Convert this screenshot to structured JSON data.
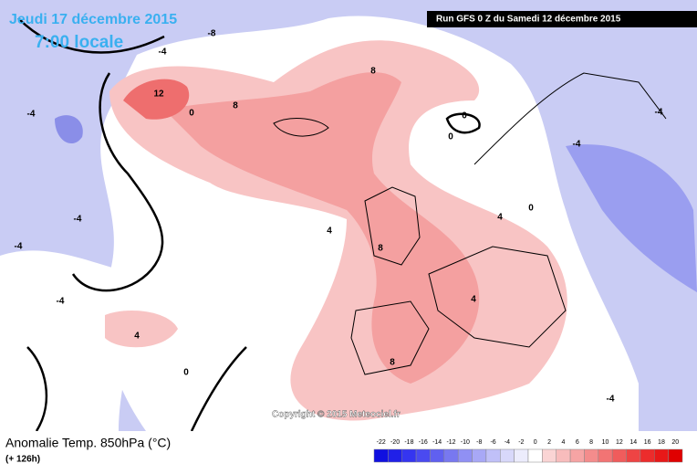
{
  "date": "Jeudi 17 décembre 2015",
  "time": "7:00 locale",
  "run": "Run GFS 0 Z du Samedi 12 décembre 2015",
  "copyright": "Copyright © 2015 Meteociel.fr",
  "title": "Anomalie Temp. 850hPa (°C)",
  "lead": "(+ 126h)",
  "contour_labels": [
    12,
    8,
    8,
    0,
    0,
    0,
    8,
    8,
    4,
    4,
    0,
    -4,
    -4,
    -4,
    -4,
    -4,
    -4,
    -8,
    -4,
    4,
    0,
    -4,
    4
  ],
  "scale": {
    "ticks": [
      -22,
      -20,
      -18,
      -16,
      -14,
      -12,
      -10,
      -8,
      -6,
      -4,
      -2,
      0,
      2,
      4,
      6,
      8,
      10,
      12,
      14,
      16,
      18,
      20
    ],
    "colors": [
      "#1010e0",
      "#2020e8",
      "#3535f0",
      "#4a4af0",
      "#6060f0",
      "#7878f0",
      "#9090f4",
      "#a8a8f6",
      "#c0c0f8",
      "#d8d8fa",
      "#ececfc",
      "#ffffff",
      "#fad4d4",
      "#f8bcbc",
      "#f6a4a4",
      "#f48c8c",
      "#f27474",
      "#f05c5c",
      "#ee4444",
      "#ec2c2c",
      "#e81818",
      "#e00000"
    ]
  }
}
